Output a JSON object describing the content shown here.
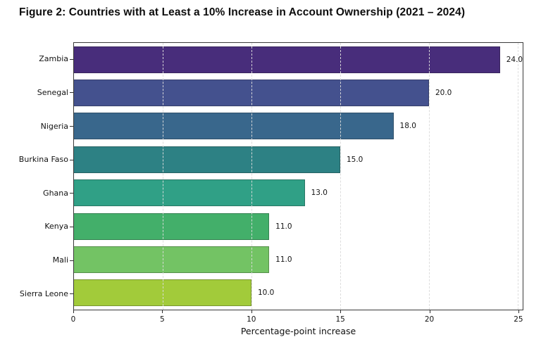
{
  "title": "Figure 2: Countries with at Least a 10% Increase in Account Ownership (2021 – 2024)",
  "chart_data": {
    "type": "bar",
    "orientation": "horizontal",
    "title": "Figure 2: Countries with at Least a 10% Increase in Account Ownership (2021 – 2024)",
    "categories": [
      "Zambia",
      "Senegal",
      "Nigeria",
      "Burkina Faso",
      "Ghana",
      "Kenya",
      "Mali",
      "Sierra Leone"
    ],
    "values": [
      24,
      20,
      18,
      15,
      13,
      11,
      11,
      10
    ],
    "value_labels": [
      "24.0",
      "20.0",
      "18.0",
      "15.0",
      "13.0",
      "11.0",
      "11.0",
      "10.0"
    ],
    "bar_colors": [
      "#482d7b",
      "#44518e",
      "#39678c",
      "#2d8184",
      "#30a086",
      "#43af6a",
      "#73c364",
      "#a2cb3a"
    ],
    "xlabel": "Percentage-point increase",
    "ylabel": "",
    "xticks": [
      0,
      5,
      10,
      15,
      20,
      25
    ],
    "xtick_labels": [
      "0",
      "5",
      "10",
      "15",
      "20",
      "25"
    ],
    "xlim": [
      0,
      25.28
    ],
    "grid": "vertical-dashed",
    "gridline_values": [
      5,
      10,
      15,
      20,
      25
    ],
    "legend": "none",
    "colors": {
      "plot_border": "#3a3a3a",
      "grid_color": "#dbdbdb",
      "text_color": "#121212",
      "background": "#ffffff"
    }
  }
}
